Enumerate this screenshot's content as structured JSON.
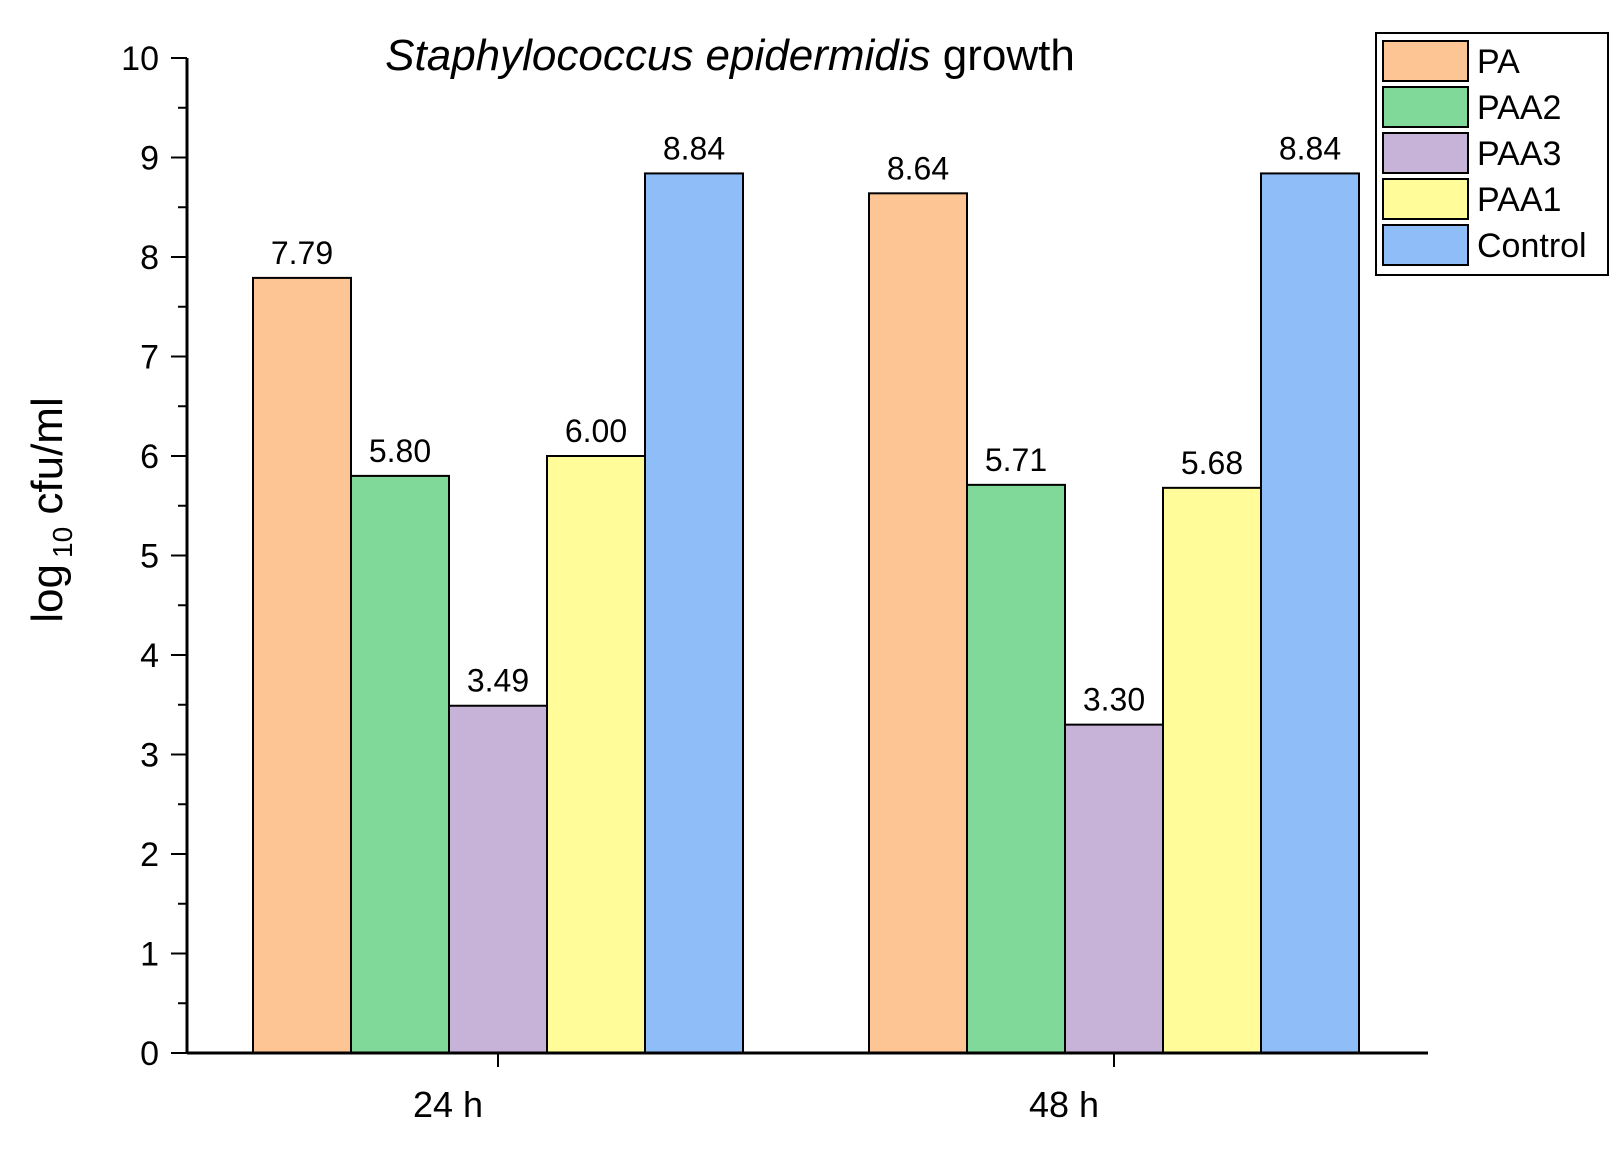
{
  "chart_data": {
    "type": "bar",
    "title_italic": "Staphylococcus epidermidis",
    "title_rest": " growth",
    "xlabel": "",
    "ylabel_main": "log",
    "ylabel_sub": "10",
    "ylabel_rest": " cfu/ml",
    "ylim": [
      0,
      10
    ],
    "yticks": [
      "0",
      "1",
      "2",
      "3",
      "4",
      "5",
      "6",
      "7",
      "8",
      "9",
      "10"
    ],
    "categories": [
      "24 h",
      "48 h"
    ],
    "series": [
      {
        "name": "PA",
        "values": [
          7.79,
          8.64
        ],
        "labels": [
          "7.79",
          "8.64"
        ],
        "color": "#FDC593"
      },
      {
        "name": "PAA2",
        "values": [
          5.8,
          5.71
        ],
        "labels": [
          "5.80",
          "5.71"
        ],
        "color": "#80D998"
      },
      {
        "name": "PAA3",
        "values": [
          3.49,
          3.3
        ],
        "labels": [
          "3.49",
          "3.30"
        ],
        "color": "#C8B3D8"
      },
      {
        "name": "PAA1",
        "values": [
          6.0,
          5.68
        ],
        "labels": [
          "6.00",
          "5.68"
        ],
        "color": "#FFFC99"
      },
      {
        "name": "Control",
        "values": [
          8.84,
          8.84
        ],
        "labels": [
          "8.84",
          "8.84"
        ],
        "color": "#8EBDF7"
      }
    ],
    "legend_position": "top-right",
    "grid": false
  }
}
